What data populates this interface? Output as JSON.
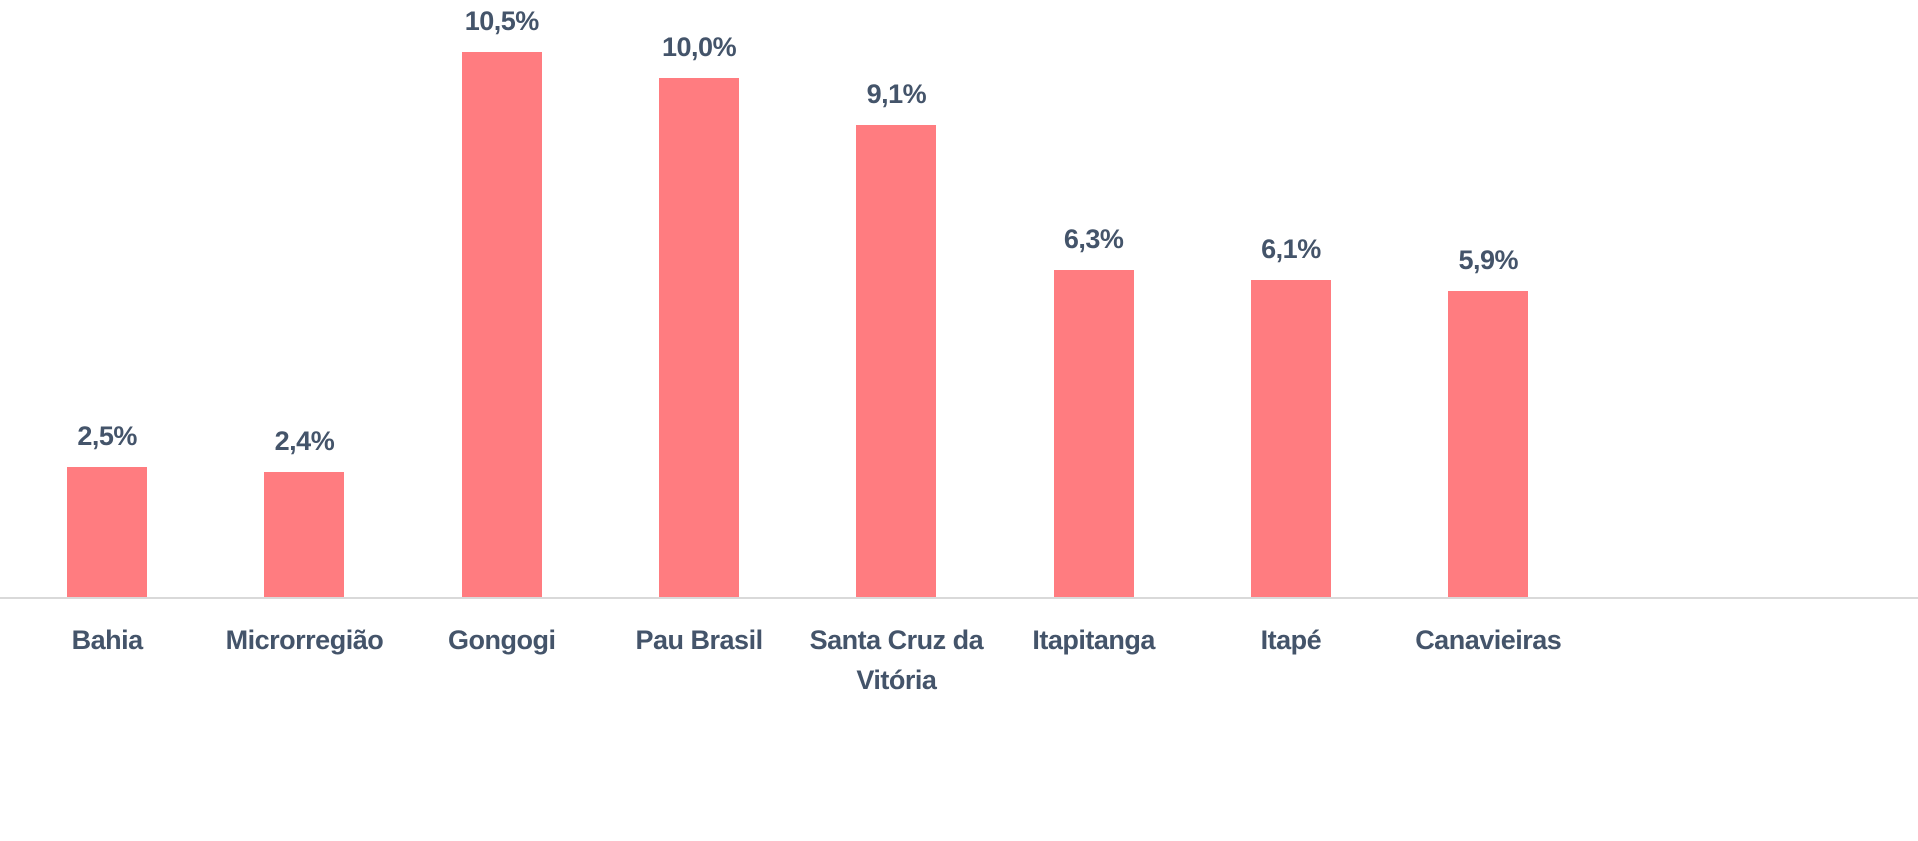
{
  "chart_data": {
    "type": "bar",
    "categories": [
      "Bahia",
      "Microrregião",
      "Gongogi",
      "Pau Brasil",
      "Santa Cruz da Vitória",
      "Itapitanga",
      "Itapé",
      "Canavieiras"
    ],
    "values": [
      2.5,
      2.4,
      10.5,
      10.0,
      9.1,
      6.3,
      6.1,
      5.9
    ],
    "value_labels": [
      "2,5%",
      "2,4%",
      "10,5%",
      "10,0%",
      "9,1%",
      "6,3%",
      "6,1%",
      "5,9%"
    ],
    "color": "#ff7c80"
  }
}
